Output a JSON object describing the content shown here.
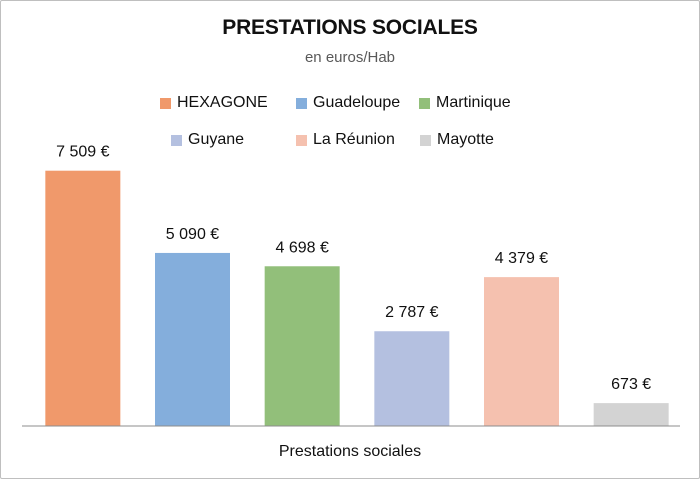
{
  "chart_data": {
    "type": "bar",
    "title": "PRESTATIONS SOCIALES",
    "subtitle": "en euros/Hab",
    "xlabel": "Prestations sociales",
    "ylabel": "",
    "categories": [
      "Prestations sociales"
    ],
    "series": [
      {
        "name": "HEXAGONE",
        "values": [
          7509
        ],
        "label": "7 509 €",
        "color": "#F0996B"
      },
      {
        "name": "Guadeloupe",
        "values": [
          5090
        ],
        "label": "5 090 €",
        "color": "#84AEDC"
      },
      {
        "name": "Martinique",
        "values": [
          4698
        ],
        "label": "4 698 €",
        "color": "#92BF7A"
      },
      {
        "name": "Guyane",
        "values": [
          2787
        ],
        "label": "2 787 €",
        "color": "#B4C0E0"
      },
      {
        "name": "La Réunion",
        "values": [
          4379
        ],
        "label": "4 379 €",
        "color": "#F5C1AF"
      },
      {
        "name": "Mayotte",
        "values": [
          673
        ],
        "label": "673 €",
        "color": "#D3D3D3"
      }
    ],
    "ylim": [
      0,
      8000
    ],
    "grid": false,
    "legend_position": "top"
  }
}
